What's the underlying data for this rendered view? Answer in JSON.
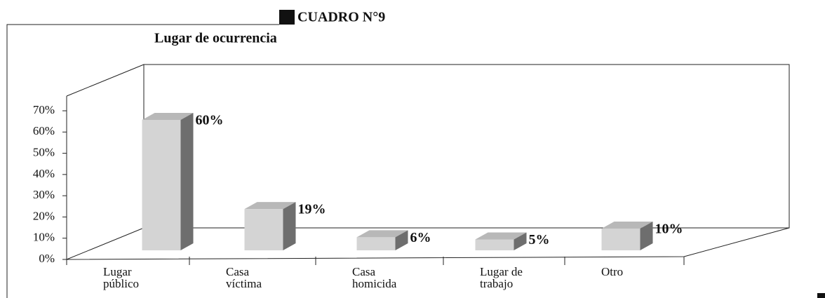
{
  "header": "CUADRO N°9",
  "chart_data": {
    "type": "bar3d",
    "title": "Lugar de ocurrencia",
    "categories": [
      [
        "Lugar",
        "público"
      ],
      [
        "Casa",
        "víctima"
      ],
      [
        "Casa",
        "homicida"
      ],
      [
        "Lugar de",
        "trabajo"
      ],
      [
        "Otro"
      ]
    ],
    "values": [
      60,
      19,
      6,
      5,
      10
    ],
    "value_labels": [
      "60%",
      "19%",
      "6%",
      "5%",
      "10%"
    ],
    "color": "#d4d4d4",
    "ylim": [
      0,
      70
    ],
    "yticks": [
      {
        "value": 0,
        "label": "0%"
      },
      {
        "value": 10,
        "label": "10%"
      },
      {
        "value": 20,
        "label": "20%"
      },
      {
        "value": 30,
        "label": "30%"
      },
      {
        "value": 40,
        "label": "40%"
      },
      {
        "value": 50,
        "label": "50%"
      },
      {
        "value": 60,
        "label": "60%"
      },
      {
        "value": 70,
        "label": "70%"
      }
    ]
  }
}
